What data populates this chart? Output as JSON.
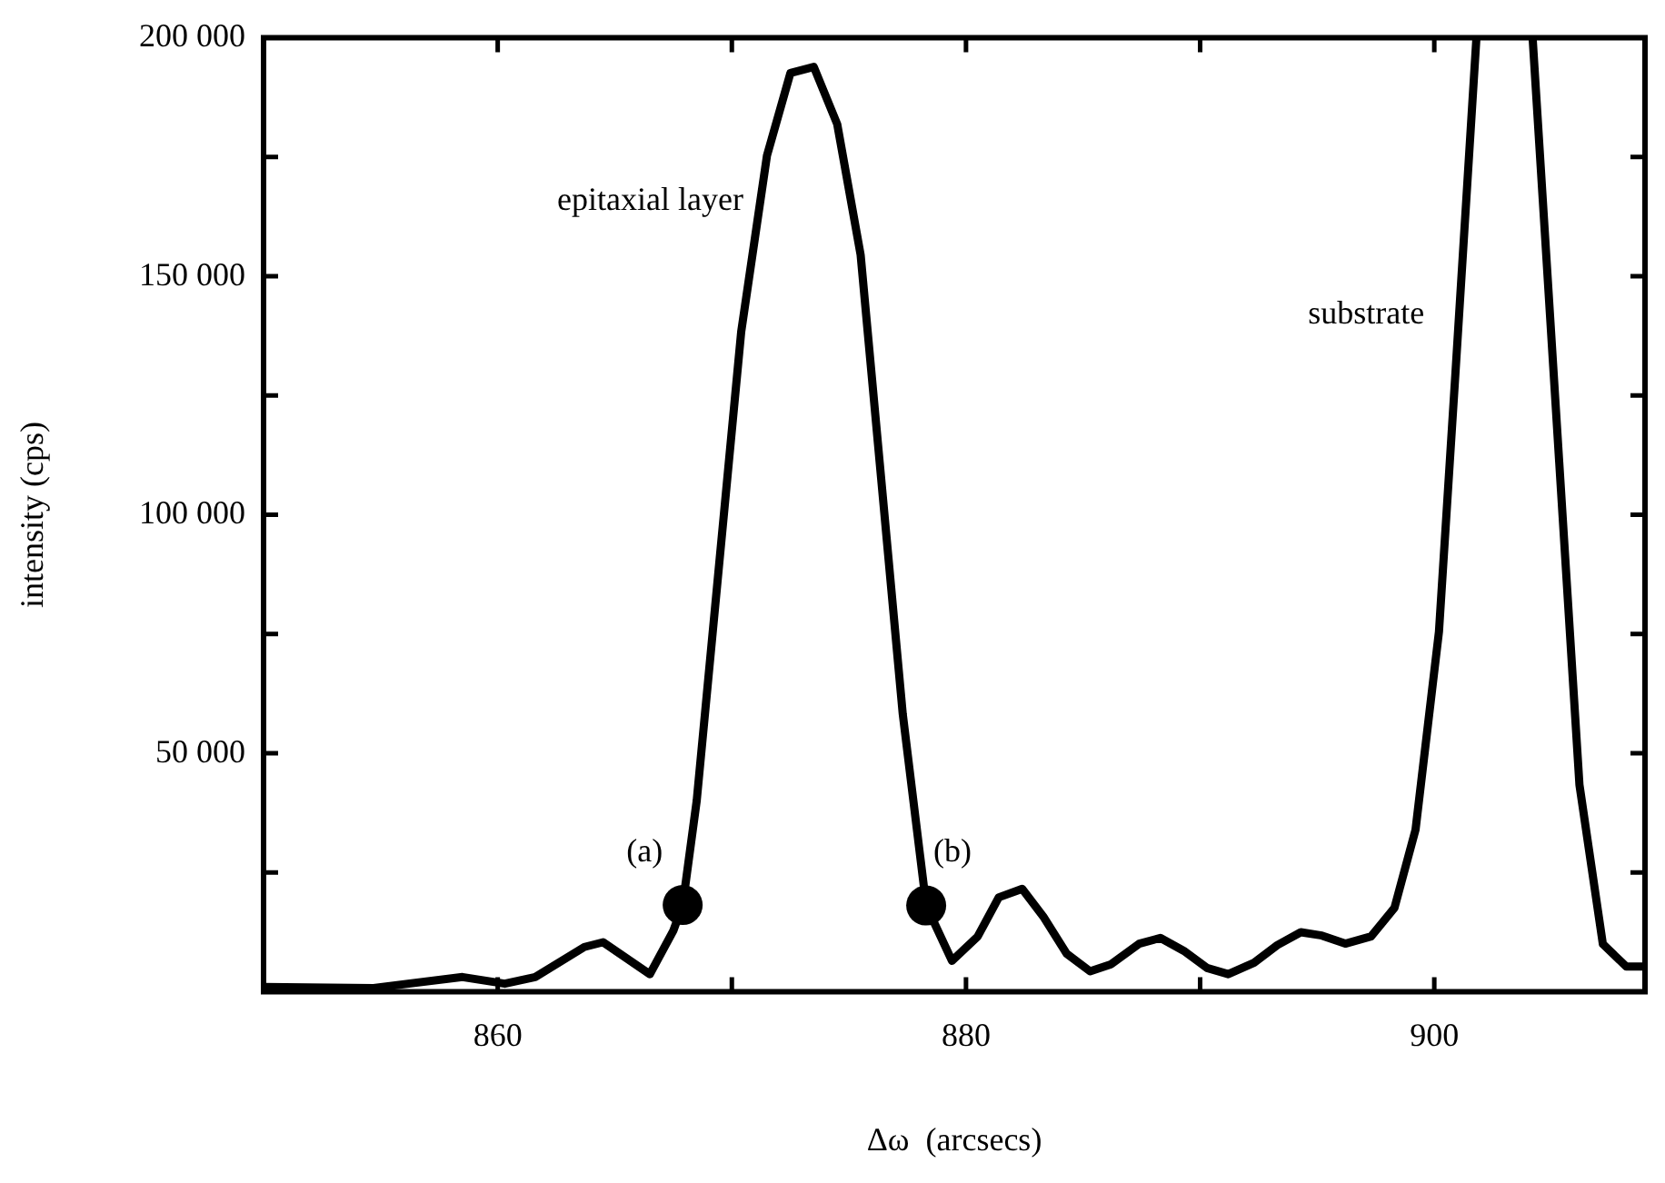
{
  "chart_data": {
    "type": "line",
    "xlabel": "Δω  (arcsecs)",
    "ylabel": "intensity (cps)",
    "xlim": [
      850,
      909
    ],
    "ylim": [
      0,
      200000
    ],
    "xticks": [
      860,
      {
        "value": 870,
        "label": null
      },
      880,
      {
        "value": 890,
        "label": null
      },
      900
    ],
    "yticks": [
      {
        "value": 25000,
        "label": null
      },
      {
        "value": 50000,
        "label": "50 000"
      },
      {
        "value": 75000,
        "label": null
      },
      {
        "value": 100000,
        "label": "100 000"
      },
      {
        "value": 125000,
        "label": null
      },
      {
        "value": 150000,
        "label": "150 000"
      },
      {
        "value": 175000,
        "label": null
      },
      {
        "value": 200000,
        "label": "200 000"
      }
    ],
    "grid": false,
    "legend": false,
    "marker": "none",
    "line_style": "solid",
    "series": [
      {
        "color": "#000000",
        "x": [
          850,
          854.7,
          858.5,
          860.3,
          861.6,
          863.7,
          864.5,
          866.5,
          867.5,
          867.9,
          868.5,
          870.4,
          871.5,
          872.5,
          873.5,
          874.5,
          875.5,
          877.3,
          878.3,
          879.4,
          880.5,
          881.4,
          882.4,
          883.3,
          884.3,
          885.3,
          886.2,
          887.4,
          888.3,
          889.3,
          890.3,
          891.2,
          892.3,
          893.3,
          894.3,
          895.2,
          896.2,
          897.3,
          898.3,
          899.2,
          900.2,
          900.9,
          901.8,
          903,
          904.2,
          906.2,
          907.2,
          908.2,
          909
        ],
        "values": [
          1000,
          800,
          3100,
          1700,
          3100,
          9400,
          10400,
          3700,
          12800,
          18200,
          40100,
          138400,
          175300,
          192600,
          193900,
          181900,
          154500,
          58200,
          18100,
          6500,
          11600,
          19800,
          21600,
          15800,
          8000,
          4300,
          5800,
          10100,
          11300,
          8600,
          5000,
          3700,
          6100,
          9800,
          12500,
          11800,
          10100,
          11600,
          17600,
          34000,
          75500,
          129400,
          200000,
          null,
          200000,
          43400,
          10000,
          5300,
          5300
        ]
      },
      {
        "type": "scatter",
        "color": "#000000",
        "marker": "circle",
        "x": [
          867.9,
          878.3
        ],
        "values": [
          18200,
          18100
        ]
      }
    ],
    "annotations": [
      {
        "text": "epitaxial layer",
        "x": 871.5,
        "y": 175300
      },
      {
        "text": "substrate",
        "x": 900.9,
        "y": 129400
      },
      {
        "text": "(a)",
        "x": 867.9,
        "y": 18200
      },
      {
        "text": "(b)",
        "x": 878.3,
        "y": 18100
      }
    ]
  }
}
